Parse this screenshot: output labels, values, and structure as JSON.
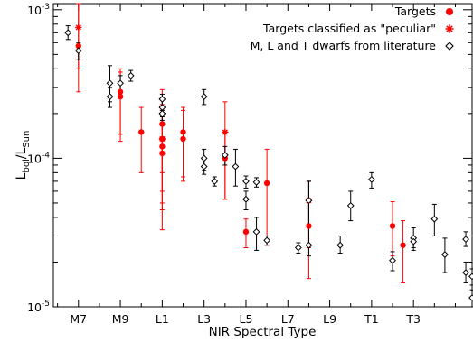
{
  "chart_data": {
    "type": "scatter",
    "xlabel": "NIR Spectral Type",
    "ylabel_main": "L",
    "ylabel_sub1": "bol",
    "ylabel_sep": "/L",
    "ylabel_sub2": "Sun",
    "x_tick_labels": [
      "M7",
      "M9",
      "L1",
      "L3",
      "L5",
      "L7",
      "L9",
      "T1",
      "T3"
    ],
    "x_tick_values": [
      7,
      9,
      11,
      13,
      15,
      17,
      19,
      21,
      23
    ],
    "xlim": [
      5.8,
      25.8
    ],
    "ylim": [
      1e-05,
      0.0011
    ],
    "yscale": "log",
    "y_tick_labels": [
      {
        "base": "10",
        "exp": "-5",
        "value": 1e-05
      },
      {
        "base": "10",
        "exp": "-4",
        "value": 0.0001
      },
      {
        "base": "10",
        "exp": "-3",
        "value": 0.001
      }
    ],
    "legend_position": "top-right",
    "series": [
      {
        "name": "Targets",
        "color": "#ff0000",
        "marker": "filled-circle",
        "points": [
          {
            "x": 7.0,
            "y": 0.00057,
            "ylo": 0.00028,
            "yhi": 0.0012
          },
          {
            "x": 9.0,
            "y": 0.00028,
            "ylo": 0.000145,
            "yhi": 0.0004
          },
          {
            "x": 9.0,
            "y": 0.00026,
            "ylo": 0.00013,
            "yhi": 0.00038
          },
          {
            "x": 10.0,
            "y": 0.00015,
            "ylo": 8e-05,
            "yhi": 0.00022
          },
          {
            "x": 11.0,
            "y": 0.00017,
            "ylo": 8e-05,
            "yhi": 0.00029
          },
          {
            "x": 11.0,
            "y": 0.000135,
            "ylo": 3.3e-05,
            "yhi": 0.00025
          },
          {
            "x": 11.0,
            "y": 0.00012,
            "ylo": 5e-05,
            "yhi": 0.00023
          },
          {
            "x": 11.0,
            "y": 0.000108,
            "ylo": 4.5e-05,
            "yhi": 0.0002
          },
          {
            "x": 12.0,
            "y": 0.00015,
            "ylo": 7.5e-05,
            "yhi": 0.00022
          },
          {
            "x": 12.0,
            "y": 0.000135,
            "ylo": 7e-05,
            "yhi": 0.00021
          },
          {
            "x": 14.0,
            "y": 0.0001,
            "ylo": 5.3e-05,
            "yhi": 0.00015
          },
          {
            "x": 16.0,
            "y": 6.8e-05,
            "ylo": 2.6e-05,
            "yhi": 0.000115
          },
          {
            "x": 18.0,
            "y": 3.5e-05,
            "ylo": 1.55e-05,
            "yhi": 5.2e-05
          },
          {
            "x": 22.0,
            "y": 3.5e-05,
            "ylo": 2.2e-05,
            "yhi": 5.1e-05
          },
          {
            "x": 22.5,
            "y": 2.6e-05,
            "ylo": 1.45e-05,
            "yhi": 3.8e-05
          },
          {
            "x": 15.0,
            "y": 3.2e-05,
            "ylo": 2.5e-05,
            "yhi": 3.9e-05
          }
        ]
      },
      {
        "name": "Targets classified as \"peculiar\"",
        "color": "#ff0000",
        "marker": "asterisk",
        "points": [
          {
            "x": 7.0,
            "y": 0.00076,
            "ylo": 0.0004,
            "yhi": 0.00115
          },
          {
            "x": 11.0,
            "y": 0.000135,
            "ylo": 6e-05,
            "yhi": 0.00021
          },
          {
            "x": 14.0,
            "y": 0.00015,
            "ylo": 5.3e-05,
            "yhi": 0.00024
          },
          {
            "x": 18.0,
            "y": 5.2e-05,
            "ylo": 2.5e-05,
            "yhi": 7e-05
          }
        ]
      },
      {
        "name": "M, L and T dwarfs from literature",
        "color": "#000000",
        "marker": "open-diamond",
        "points": [
          {
            "x": 6.5,
            "y": 0.0007,
            "ylo": 0.00063,
            "yhi": 0.00078
          },
          {
            "x": 7.0,
            "y": 0.00053,
            "ylo": 0.00046,
            "yhi": 0.0006
          },
          {
            "x": 8.5,
            "y": 0.00032,
            "ylo": 0.00024,
            "yhi": 0.00042
          },
          {
            "x": 8.5,
            "y": 0.00026,
            "ylo": 0.00022,
            "yhi": 0.0003
          },
          {
            "x": 9.0,
            "y": 0.00032,
            "ylo": 0.00028,
            "yhi": 0.00036
          },
          {
            "x": 9.5,
            "y": 0.00036,
            "ylo": 0.00033,
            "yhi": 0.00039
          },
          {
            "x": 11.0,
            "y": 0.00025,
            "ylo": 0.00021,
            "yhi": 0.00027
          },
          {
            "x": 11.0,
            "y": 0.00022,
            "ylo": 0.00019,
            "yhi": 0.00025
          },
          {
            "x": 11.0,
            "y": 0.0002,
            "ylo": 0.00018,
            "yhi": 0.00022
          },
          {
            "x": 13.0,
            "y": 0.00026,
            "ylo": 0.00023,
            "yhi": 0.00029
          },
          {
            "x": 13.0,
            "y": 0.0001,
            "ylo": 8.3e-05,
            "yhi": 0.000115
          },
          {
            "x": 13.0,
            "y": 8.8e-05,
            "ylo": 7.8e-05,
            "yhi": 0.0001
          },
          {
            "x": 13.5,
            "y": 7e-05,
            "ylo": 6.5e-05,
            "yhi": 7.5e-05
          },
          {
            "x": 14.0,
            "y": 0.000105,
            "ylo": 9e-05,
            "yhi": 0.00012
          },
          {
            "x": 14.5,
            "y": 8.8e-05,
            "ylo": 6.5e-05,
            "yhi": 0.000115
          },
          {
            "x": 15.0,
            "y": 7e-05,
            "ylo": 6.3e-05,
            "yhi": 7.6e-05
          },
          {
            "x": 15.0,
            "y": 5.3e-05,
            "ylo": 4.5e-05,
            "yhi": 6e-05
          },
          {
            "x": 15.5,
            "y": 6.9e-05,
            "ylo": 6.4e-05,
            "yhi": 7.4e-05
          },
          {
            "x": 15.5,
            "y": 3.2e-05,
            "ylo": 2.4e-05,
            "yhi": 4e-05
          },
          {
            "x": 16.0,
            "y": 2.8e-05,
            "ylo": 2.6e-05,
            "yhi": 3e-05
          },
          {
            "x": 17.5,
            "y": 2.5e-05,
            "ylo": 2.3e-05,
            "yhi": 2.7e-05
          },
          {
            "x": 18.0,
            "y": 2.6e-05,
            "ylo": 2.2e-05,
            "yhi": 7e-05
          },
          {
            "x": 18.0,
            "y": 5.2e-05,
            "ylo": 3.5e-05,
            "yhi": 7e-05
          },
          {
            "x": 19.5,
            "y": 2.6e-05,
            "ylo": 2.3e-05,
            "yhi": 3e-05
          },
          {
            "x": 20.0,
            "y": 4.8e-05,
            "ylo": 3.8e-05,
            "yhi": 6e-05
          },
          {
            "x": 21.0,
            "y": 7.2e-05,
            "ylo": 6.3e-05,
            "yhi": 8e-05
          },
          {
            "x": 22.0,
            "y": 2.05e-05,
            "ylo": 1.75e-05,
            "yhi": 2.35e-05
          },
          {
            "x": 23.0,
            "y": 2.9e-05,
            "ylo": 2.4e-05,
            "yhi": 3.4e-05
          },
          {
            "x": 23.0,
            "y": 2.75e-05,
            "ylo": 2.5e-05,
            "yhi": 3e-05
          },
          {
            "x": 24.0,
            "y": 3.9e-05,
            "ylo": 3e-05,
            "yhi": 4.9e-05
          },
          {
            "x": 24.5,
            "y": 2.25e-05,
            "ylo": 1.7e-05,
            "yhi": 2.9e-05
          },
          {
            "x": 25.5,
            "y": 2.85e-05,
            "ylo": 2.55e-05,
            "yhi": 3.2e-05
          },
          {
            "x": 25.5,
            "y": 1.7e-05,
            "ylo": 1.45e-05,
            "yhi": 2e-05
          },
          {
            "x": 25.8,
            "y": 1.6e-05,
            "ylo": 1.4e-05,
            "yhi": 1.8e-05
          },
          {
            "x": 25.8,
            "y": 1.15e-05,
            "ylo": 1e-05,
            "yhi": 1.3e-05
          }
        ]
      }
    ]
  }
}
